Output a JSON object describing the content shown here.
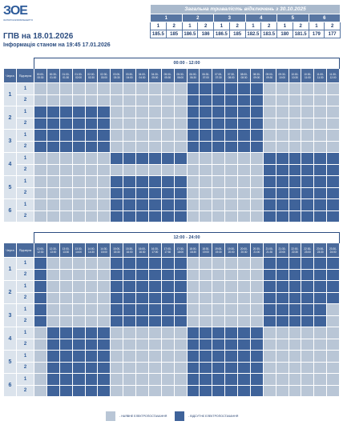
{
  "header": {
    "logo_text": "ЗОЕ",
    "logo_sub": "ЗАПОРІЖЖЯОБЛЕНЕРГО",
    "title": "ГПВ на 18.01.2026",
    "subtitle": "Інформація станом на 19:45 17.01.2026"
  },
  "summary": {
    "heading": "Загальна тривалість відключень з 30.10.2025",
    "queues": [
      "1",
      "2",
      "3",
      "4",
      "5",
      "6"
    ],
    "subqueues": [
      "1",
      "2",
      "1",
      "2",
      "1",
      "2",
      "1",
      "2",
      "1",
      "2",
      "1",
      "2"
    ],
    "values": [
      "185.5",
      "185",
      "186.5",
      "186",
      "186.5",
      "185",
      "182.5",
      "183.5",
      "180",
      "181.5",
      "179",
      "177"
    ]
  },
  "labels": {
    "queue_col": "Черга",
    "sub_col": "Підчерга"
  },
  "colors": {
    "power_on": "#b9c6d6",
    "power_off": "#3f639a",
    "header_blue": "#4a6a9b"
  },
  "legend": {
    "on_label": "- НАЯВНЕ ЕЛЕКТРОПОСТАЧАННЯ",
    "off_label": "- ВІДСУТНЄ ЕЛЕКТРОПОСТАЧАННЯ"
  },
  "tables": [
    {
      "period": "00:00 - 12:00",
      "slots": [
        "00:00-00:30",
        "00:30-01:00",
        "01:00-01:30",
        "01:30-02:00",
        "02:00-02:30",
        "02:30-03:00",
        "03:00-03:30",
        "03:30-04:00",
        "04:00-04:30",
        "04:30-05:00",
        "05:00-05:30",
        "05:30-06:00",
        "06:00-06:30",
        "06:30-07:00",
        "07:00-07:30",
        "07:30-08:00",
        "08:00-08:30",
        "08:30-09:00",
        "09:00-09:30",
        "09:30-10:00",
        "10:00-10:30",
        "10:30-11:00",
        "11:00-11:30",
        "11:30-12:00"
      ],
      "groups": [
        {
          "queue": "1",
          "rows": [
            {
              "sub": "1",
              "cells": "000000000000111111000000111"
            },
            {
              "sub": "2",
              "cells": "000000000000111111000000111"
            }
          ]
        },
        {
          "queue": "2",
          "rows": [
            {
              "sub": "1",
              "cells": "111111000000111111000000111"
            },
            {
              "sub": "2",
              "cells": "111111000000111111000000111"
            }
          ]
        },
        {
          "queue": "3",
          "rows": [
            {
              "sub": "1",
              "cells": "111111000000111111000000111"
            },
            {
              "sub": "2",
              "cells": "111111000000111111000000111"
            }
          ]
        },
        {
          "queue": "4",
          "rows": [
            {
              "sub": "1",
              "cells": "000000111111000000111111000"
            },
            {
              "sub": "2",
              "cells": "000000000000000000111111000"
            }
          ]
        },
        {
          "queue": "5",
          "rows": [
            {
              "sub": "1",
              "cells": "000000111111000000111111000"
            },
            {
              "sub": "2",
              "cells": "000000111111000000111111000"
            }
          ]
        },
        {
          "queue": "6",
          "rows": [
            {
              "sub": "1",
              "cells": "000000111111000000111111000"
            },
            {
              "sub": "2",
              "cells": "000000111111000000111111000"
            }
          ]
        }
      ]
    },
    {
      "period": "12:00 - 24:00",
      "slots": [
        "12:00-12:30",
        "12:30-13:00",
        "13:00-13:30",
        "13:30-14:00",
        "14:00-14:30",
        "14:30-15:00",
        "15:00-15:30",
        "15:30-16:00",
        "16:00-16:30",
        "16:30-17:00",
        "17:00-17:30",
        "17:30-18:00",
        "18:00-18:30",
        "18:30-19:00",
        "19:00-19:30",
        "19:30-20:00",
        "20:00-20:30",
        "20:30-21:00",
        "21:00-21:30",
        "21:30-22:00",
        "22:00-22:30",
        "22:30-23:00",
        "23:00-23:30",
        "23:30-24:00"
      ],
      "groups": [
        {
          "queue": "1",
          "rows": [
            {
              "sub": "1",
              "cells": "100000111111000000111111000"
            },
            {
              "sub": "2",
              "cells": "100000111111000000111111000"
            }
          ]
        },
        {
          "queue": "2",
          "rows": [
            {
              "sub": "1",
              "cells": "100000111111000000111111000"
            },
            {
              "sub": "2",
              "cells": "100000111111000000111111000"
            }
          ]
        },
        {
          "queue": "3",
          "rows": [
            {
              "sub": "1",
              "cells": "100000111111000000111110000"
            },
            {
              "sub": "2",
              "cells": "100000111111000000111110000"
            }
          ]
        },
        {
          "queue": "4",
          "rows": [
            {
              "sub": "1",
              "cells": "011111000000111111000000000"
            },
            {
              "sub": "2",
              "cells": "011111000000111111000000111"
            }
          ]
        },
        {
          "queue": "5",
          "rows": [
            {
              "sub": "1",
              "cells": "011111000000111111000000111"
            },
            {
              "sub": "2",
              "cells": "011111000000111111000000111"
            }
          ]
        },
        {
          "queue": "6",
          "rows": [
            {
              "sub": "1",
              "cells": "011111000000111111000000111"
            },
            {
              "sub": "2",
              "cells": "011111000000111111000000111"
            }
          ]
        }
      ]
    }
  ]
}
